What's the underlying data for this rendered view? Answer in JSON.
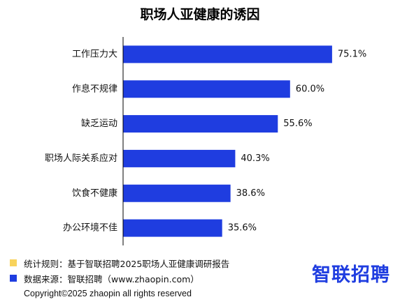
{
  "chart_data": {
    "type": "bar",
    "orientation": "horizontal",
    "title": "职场人亚健康的诱因",
    "categories": [
      "工作压力大",
      "作息不规律",
      "缺乏运动",
      "职场人际关系应对",
      "饮食不健康",
      "办公环境不佳"
    ],
    "values": [
      75.1,
      60.0,
      55.6,
      40.3,
      38.6,
      35.6
    ],
    "value_labels": [
      "75.1%",
      "60.0%",
      "55.6%",
      "40.3%",
      "38.6%",
      "35.6%"
    ],
    "xlabel": "",
    "ylabel": "",
    "xlim": [
      0,
      100
    ],
    "grid": false,
    "bar_color": "#1f3de0"
  },
  "legend": [
    {
      "swatch_color": "#f8d35c",
      "text": "统计规则：基于智联招聘2025职场人亚健康调研报告"
    },
    {
      "swatch_color": "#1f3de0",
      "text": "数据来源：智联招聘（www.zhaopin.com）"
    }
  ],
  "brand": {
    "text": "智联招聘",
    "color": "#1f3de0"
  },
  "copyright": "Copyright©2025 zhaopin all rights reserved"
}
